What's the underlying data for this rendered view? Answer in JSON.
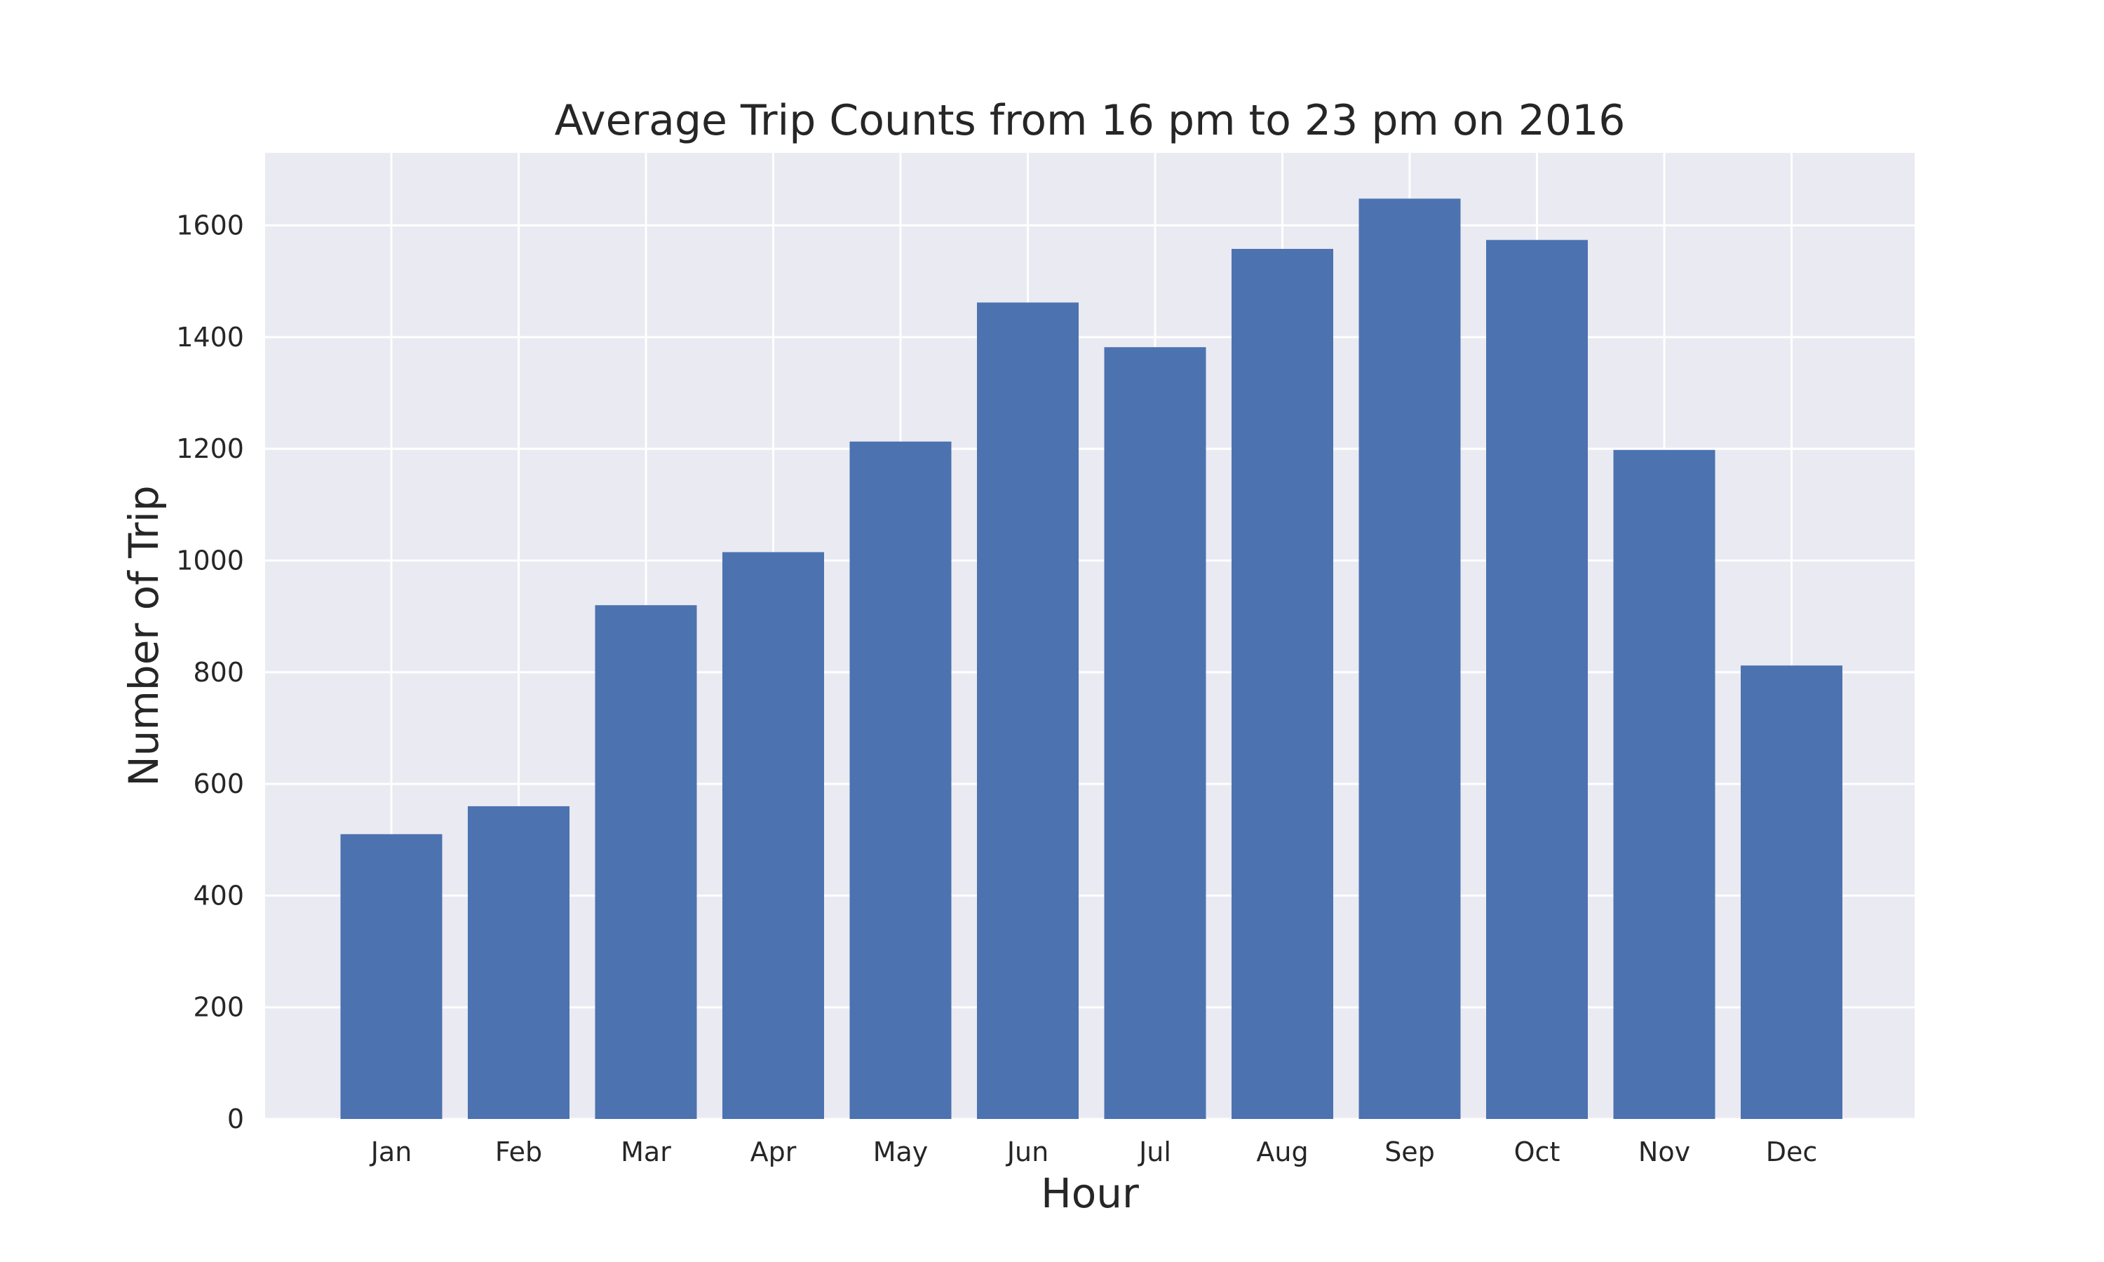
{
  "chart_data": {
    "type": "bar",
    "title": "Average Trip Counts from 16 pm to 23 pm on 2016",
    "xlabel": "Hour",
    "ylabel": "Number of Trip",
    "categories": [
      "Jan",
      "Feb",
      "Mar",
      "Apr",
      "May",
      "Jun",
      "Jul",
      "Aug",
      "Sep",
      "Oct",
      "Nov",
      "Dec"
    ],
    "values": [
      510,
      560,
      920,
      1015,
      1213,
      1462,
      1382,
      1558,
      1648,
      1574,
      1198,
      812
    ],
    "ylim": [
      0,
      1730
    ],
    "yticks": [
      0,
      200,
      400,
      600,
      800,
      1000,
      1200,
      1400,
      1600
    ],
    "grid": true,
    "colors": {
      "bar": "#4C72B0",
      "plot_background": "#EAEAF2",
      "grid": "#FFFFFF",
      "text": "#262626"
    }
  }
}
